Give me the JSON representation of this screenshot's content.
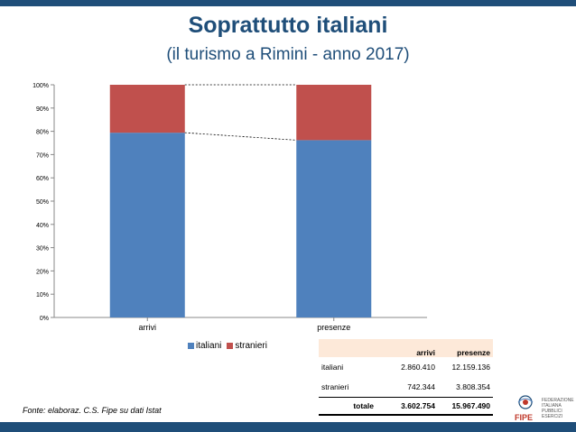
{
  "title": "Soprattutto italiani",
  "subtitle": "(il turismo a Rimini - anno 2017)",
  "source": "Fonte: elaboraz. C.S. Fipe su dati Istat",
  "colors": {
    "italiani": "#4f81bd",
    "stranieri": "#c0504d",
    "brand": "#1f4e79"
  },
  "chart_data": {
    "type": "bar",
    "stacked": "percent",
    "categories": [
      "arrivi",
      "presenze"
    ],
    "series": [
      {
        "name": "italiani",
        "values": [
          79.4,
          76.2
        ]
      },
      {
        "name": "stranieri",
        "values": [
          20.6,
          23.8
        ]
      }
    ],
    "ylim": [
      0,
      100
    ],
    "yticks": [
      "0%",
      "10%",
      "20%",
      "30%",
      "40%",
      "50%",
      "60%",
      "70%",
      "80%",
      "90%",
      "100%"
    ],
    "legend": "bottom"
  },
  "table": {
    "headers": [
      "",
      "arrivi",
      "presenze"
    ],
    "rows": [
      {
        "label": "italiani",
        "arrivi": "2.860.410",
        "presenze": "12.159.136"
      },
      {
        "label": "stranieri",
        "arrivi": "742.344",
        "presenze": "3.808.354"
      }
    ],
    "total": {
      "label": "totale",
      "arrivi": "3.602.754",
      "presenze": "15.967.490"
    }
  },
  "logo": {
    "name": "FIPE",
    "caption": "FEDERAZIONE ITALIANA PUBBLICI ESERCIZI"
  }
}
